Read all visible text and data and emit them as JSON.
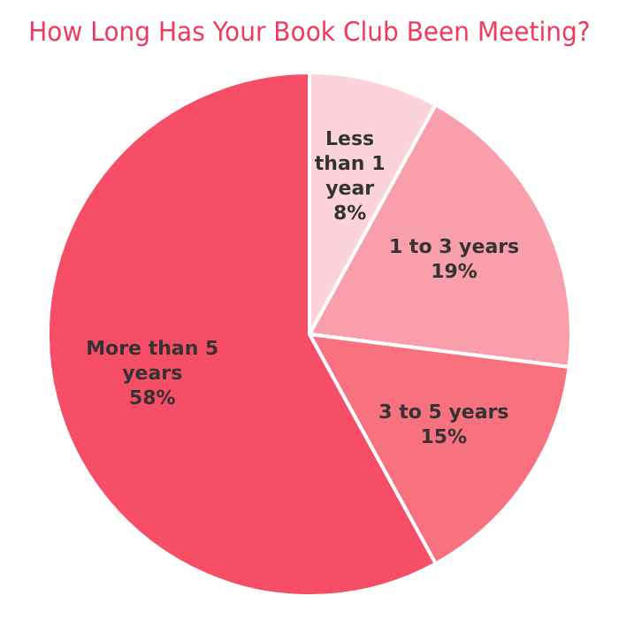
{
  "chart_data": {
    "type": "pie",
    "title": "How Long Has Your Book Club Been Meeting?",
    "categories": [
      "Less than 1 year",
      "1 to 3 years",
      "3 to 5 years",
      "More than 5 years"
    ],
    "values": [
      8,
      19,
      15,
      58
    ],
    "value_labels": [
      "8%",
      "19%",
      "15%",
      "58%"
    ],
    "colors": [
      "#fcd3da",
      "#f99fac",
      "#f7717f",
      "#f64e66"
    ],
    "legend": false
  }
}
